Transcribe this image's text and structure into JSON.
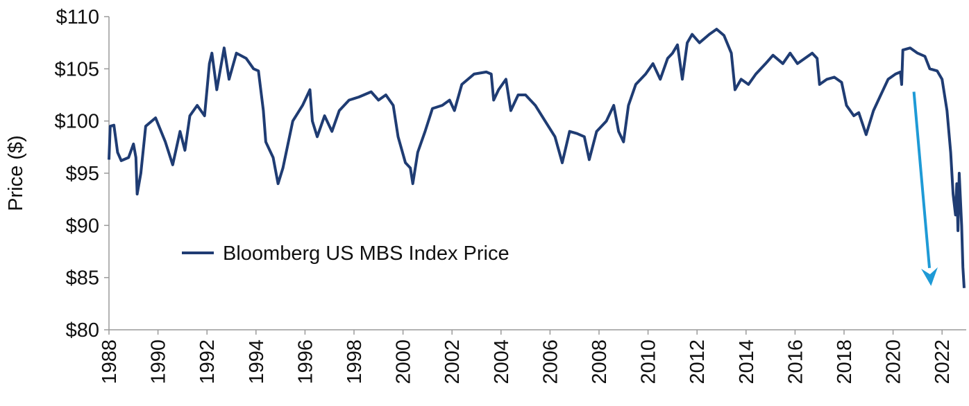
{
  "chart_data": {
    "type": "line",
    "title": "",
    "xlabel": "",
    "ylabel": "Price ($)",
    "xlim": [
      1988,
      2023
    ],
    "ylim": [
      80,
      110
    ],
    "grid": false,
    "legend_position": "lower-left",
    "y_ticks": [
      110,
      105,
      100,
      95,
      90,
      85,
      80
    ],
    "y_tick_labels": [
      "$110",
      "$105",
      "$100",
      "$95",
      "$90",
      "$85",
      "$80"
    ],
    "x_ticks": [
      1988,
      1990,
      1992,
      1994,
      1996,
      1998,
      2000,
      2002,
      2004,
      2006,
      2008,
      2010,
      2012,
      2014,
      2016,
      2018,
      2020,
      2022
    ],
    "x_tick_labels": [
      "1988",
      "1990",
      "1992",
      "1994",
      "1996",
      "1998",
      "2000",
      "2002",
      "2004",
      "2006",
      "2008",
      "2010",
      "2012",
      "2014",
      "2016",
      "2018",
      "2020",
      "2022"
    ],
    "series": [
      {
        "name": "Bloomberg US MBS Index Price",
        "color": "#1f3c73",
        "x": [
          1988.0,
          1988.05,
          1988.2,
          1988.35,
          1988.5,
          1988.8,
          1989.0,
          1989.1,
          1989.15,
          1989.3,
          1989.5,
          1989.9,
          1990.3,
          1990.6,
          1990.9,
          1991.1,
          1991.3,
          1991.6,
          1991.9,
          1992.1,
          1992.2,
          1992.4,
          1992.7,
          1992.9,
          1993.2,
          1993.6,
          1993.9,
          1994.1,
          1994.3,
          1994.4,
          1994.7,
          1994.9,
          1995.1,
          1995.5,
          1995.9,
          1996.2,
          1996.3,
          1996.5,
          1996.8,
          1997.1,
          1997.4,
          1997.8,
          1998.2,
          1998.7,
          1999.0,
          1999.3,
          1999.6,
          1999.8,
          2000.1,
          2000.3,
          2000.4,
          2000.6,
          2000.9,
          2001.2,
          2001.6,
          2001.9,
          2002.1,
          2002.4,
          2002.9,
          2003.4,
          2003.6,
          2003.7,
          2003.9,
          2004.2,
          2004.4,
          2004.7,
          2005.0,
          2005.4,
          2005.8,
          2006.2,
          2006.5,
          2006.8,
          2007.1,
          2007.4,
          2007.6,
          2007.9,
          2008.3,
          2008.6,
          2008.8,
          2009.0,
          2009.2,
          2009.5,
          2009.9,
          2010.2,
          2010.5,
          2010.8,
          2011.0,
          2011.2,
          2011.4,
          2011.6,
          2011.8,
          2012.1,
          2012.5,
          2012.8,
          2013.1,
          2013.4,
          2013.55,
          2013.8,
          2014.1,
          2014.4,
          2014.8,
          2015.1,
          2015.5,
          2015.8,
          2016.1,
          2016.4,
          2016.7,
          2016.9,
          2017.0,
          2017.3,
          2017.6,
          2017.9,
          2018.1,
          2018.4,
          2018.6,
          2018.9,
          2019.2,
          2019.5,
          2019.8,
          2020.1,
          2020.3,
          2020.35,
          2020.4,
          2020.7,
          2021.0,
          2021.3,
          2021.5,
          2021.8,
          2022.0,
          2022.2,
          2022.35,
          2022.45,
          2022.55,
          2022.6,
          2022.65,
          2022.7,
          2022.8,
          2022.85,
          2022.9
        ],
        "y": [
          96.3,
          99.5,
          99.6,
          97.0,
          96.2,
          96.5,
          97.8,
          96.5,
          93.0,
          95.0,
          99.5,
          100.3,
          98.0,
          95.8,
          99.0,
          97.2,
          100.5,
          101.5,
          100.5,
          105.5,
          106.5,
          103.0,
          107.0,
          104.0,
          106.5,
          106.0,
          105.0,
          104.8,
          101.0,
          98.0,
          96.5,
          94.0,
          95.5,
          100.0,
          101.5,
          103.0,
          100.0,
          98.5,
          100.5,
          99.0,
          101.0,
          102.0,
          102.3,
          102.8,
          102.0,
          102.5,
          101.5,
          98.5,
          96.0,
          95.5,
          94.0,
          97.0,
          99.0,
          101.2,
          101.5,
          102.0,
          101.0,
          103.5,
          104.5,
          104.7,
          104.5,
          102.0,
          103.0,
          104.0,
          101.0,
          102.5,
          102.5,
          101.5,
          100.0,
          98.5,
          96.0,
          99.0,
          98.8,
          98.5,
          96.3,
          99.0,
          100.0,
          101.5,
          99.0,
          98.0,
          101.5,
          103.5,
          104.5,
          105.5,
          104.0,
          106.0,
          106.5,
          107.3,
          104.0,
          107.5,
          108.3,
          107.5,
          108.3,
          108.8,
          108.2,
          106.5,
          103.0,
          104.0,
          103.5,
          104.5,
          105.5,
          106.3,
          105.5,
          106.5,
          105.5,
          106.0,
          106.5,
          106.0,
          103.5,
          104.0,
          104.2,
          103.7,
          101.5,
          100.5,
          100.8,
          98.7,
          101.0,
          102.5,
          104.0,
          104.5,
          104.7,
          103.5,
          106.8,
          107.0,
          106.5,
          106.2,
          105.0,
          104.8,
          104.0,
          101.0,
          97.0,
          93.0,
          91.0,
          94.0,
          89.5,
          95.0,
          90.0,
          86.0,
          84.0
        ]
      }
    ],
    "annotations": [
      {
        "type": "arrow",
        "color": "#1e9ad6",
        "from": [
          2020.85,
          102.8
        ],
        "to": [
          2021.55,
          84.2
        ]
      }
    ]
  }
}
